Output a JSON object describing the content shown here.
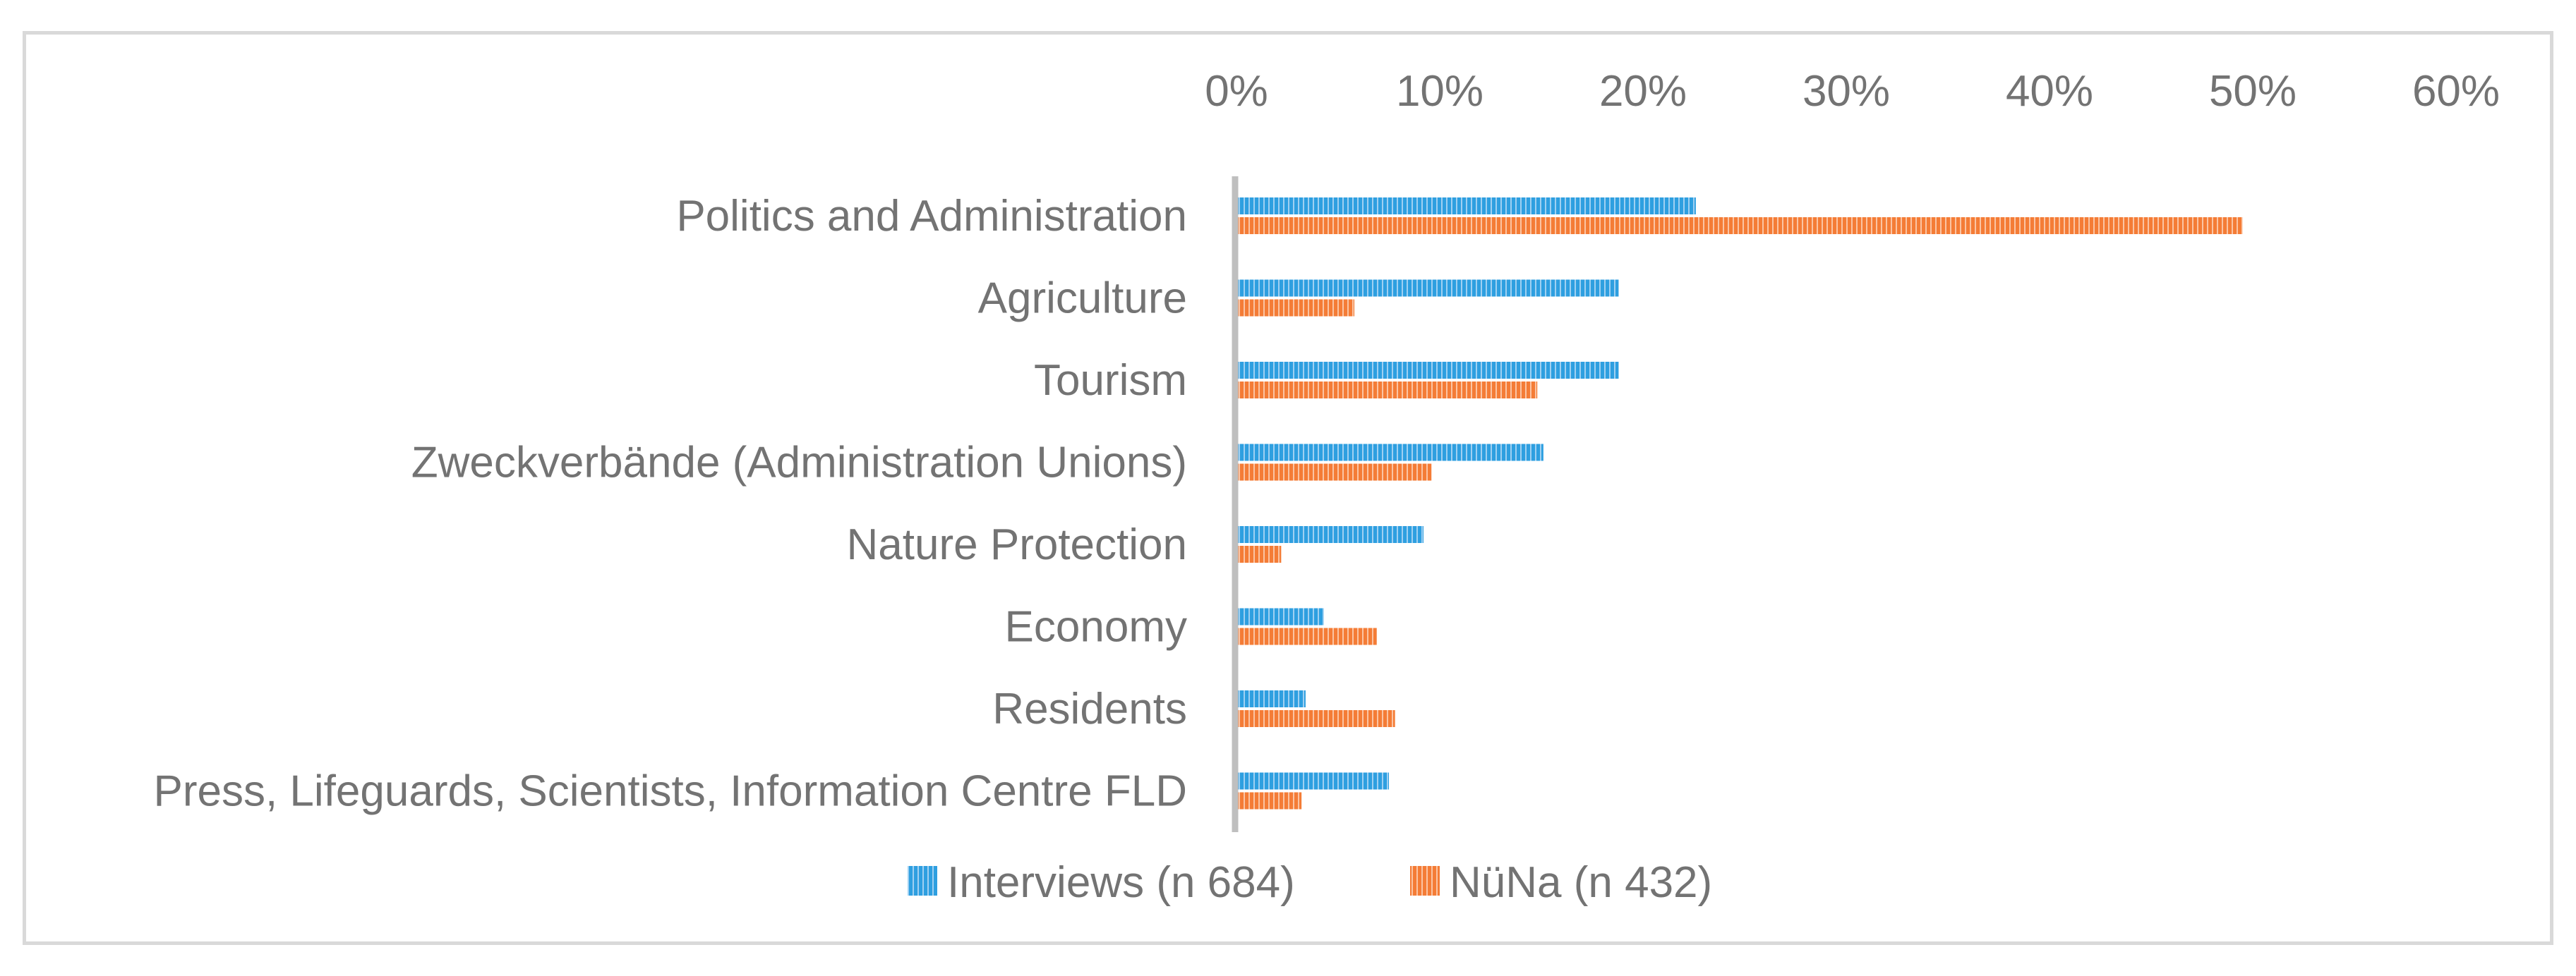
{
  "chart_data": {
    "type": "bar",
    "orientation": "horizontal",
    "categories": [
      "Politics and Administration",
      "Agriculture",
      "Tourism",
      "Zweckverbände (Administration Unions)",
      "Nature Protection",
      "Economy",
      "Residents",
      "Press, Lifeguards, Scientists, Information Centre FLD"
    ],
    "series": [
      {
        "name": "Interviews (n 684)",
        "color": "#2e9fe0",
        "values": [
          22.6,
          18.8,
          18.8,
          15.1,
          9.2,
          4.3,
          3.4,
          7.5
        ]
      },
      {
        "name": "NüNa (n 432)",
        "color": "#f47c36",
        "values": [
          49.5,
          5.8,
          14.8,
          9.6,
          2.2,
          6.9,
          7.8,
          3.2
        ]
      }
    ],
    "xlim": [
      0,
      60
    ],
    "x_ticks": [
      "0%",
      "10%",
      "20%",
      "30%",
      "40%",
      "50%",
      "60%"
    ],
    "x_axis_position": "top",
    "grid": false,
    "legend_position": "bottom",
    "title": "",
    "xlabel": "",
    "ylabel": "",
    "colors": {
      "axis": "#bfbfbf",
      "text": "#737373",
      "border": "#d9d9d9"
    }
  }
}
